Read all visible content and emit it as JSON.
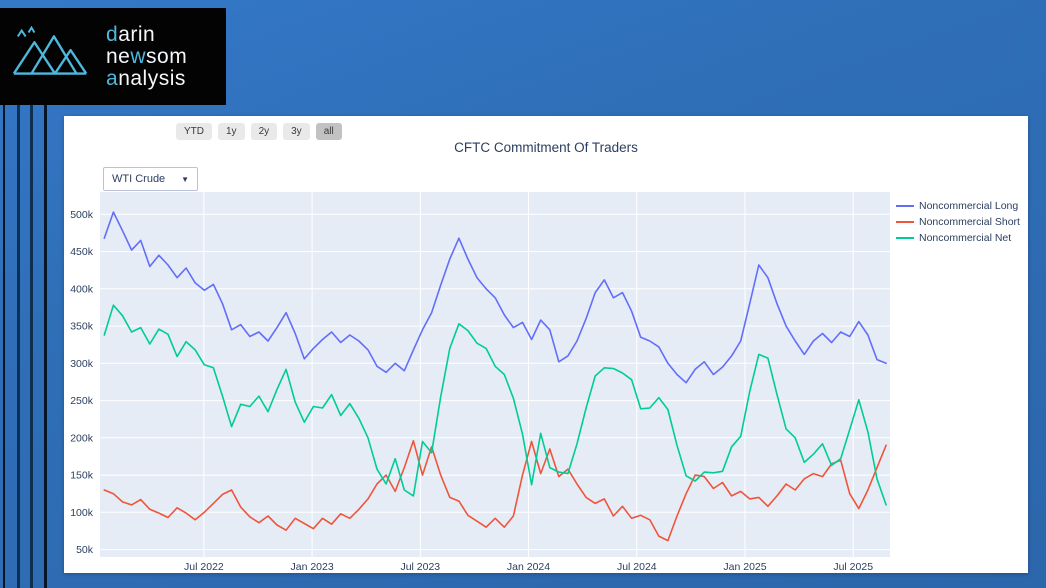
{
  "logo": {
    "line1_hl": "d",
    "line1_rest": "arin",
    "line2_pre": "ne",
    "line2_hl": "w",
    "line2_rest": "som",
    "line3_hl": "a",
    "line3_rest": "nalysis",
    "accent": "#4db9de",
    "icon": "mountain-peaks-icon"
  },
  "toolbar": {
    "range_buttons": [
      "YTD",
      "1y",
      "2y",
      "3y",
      "all"
    ],
    "active_range": "all"
  },
  "instrument": {
    "selected": "WTI Crude",
    "caret": "▼"
  },
  "chart_data": {
    "type": "line",
    "title": "CFTC Commitment Of Traders",
    "plot_bg": "#e5ecf6",
    "grid": true,
    "legend_position": "right",
    "values_unit": "thousands of contracts",
    "x_start": 2022.04,
    "x_step": 0.042,
    "x_range": [
      2022.02,
      2025.67
    ],
    "y_range": [
      40,
      530
    ],
    "xticks": {
      "values": [
        2022.5,
        2023.0,
        2023.5,
        2024.0,
        2024.5,
        2025.0,
        2025.5
      ],
      "labels": [
        "Jul 2022",
        "Jan 2023",
        "Jul 2023",
        "Jan 2024",
        "Jul 2024",
        "Jan 2025",
        "Jul 2025"
      ]
    },
    "yticks": {
      "values": [
        50,
        100,
        150,
        200,
        250,
        300,
        350,
        400,
        450,
        500
      ],
      "labels": [
        "50k",
        "100k",
        "150k",
        "200k",
        "250k",
        "300k",
        "350k",
        "400k",
        "450k",
        "500k"
      ]
    },
    "series": [
      {
        "name": "Noncommercial Long",
        "color": "#636efa",
        "values": [
          468,
          503,
          478,
          452,
          465,
          430,
          445,
          432,
          415,
          428,
          408,
          398,
          406,
          380,
          345,
          352,
          336,
          342,
          330,
          348,
          368,
          340,
          306,
          320,
          332,
          342,
          328,
          338,
          330,
          318,
          296,
          288,
          300,
          290,
          318,
          345,
          368,
          405,
          440,
          468,
          440,
          415,
          400,
          388,
          365,
          348,
          355,
          332,
          358,
          345,
          302,
          310,
          330,
          360,
          395,
          412,
          388,
          395,
          370,
          335,
          330,
          322,
          300,
          285,
          274,
          292,
          302,
          285,
          295,
          310,
          330,
          380,
          432,
          415,
          380,
          350,
          330,
          312,
          330,
          340,
          328,
          342,
          336,
          356,
          338,
          305,
          300
        ]
      },
      {
        "name": "Noncommercial Short",
        "color": "#ef553b",
        "values": [
          130,
          125,
          114,
          110,
          117,
          104,
          99,
          93,
          106,
          99,
          90,
          100,
          112,
          124,
          130,
          107,
          94,
          86,
          95,
          83,
          76,
          92,
          85,
          78,
          92,
          84,
          98,
          92,
          104,
          118,
          138,
          150,
          128,
          160,
          196,
          150,
          188,
          150,
          120,
          115,
          96,
          88,
          80,
          92,
          80,
          95,
          150,
          195,
          152,
          185,
          148,
          158,
          138,
          120,
          112,
          118,
          95,
          108,
          92,
          96,
          90,
          68,
          62,
          95,
          125,
          150,
          148,
          132,
          140,
          122,
          128,
          118,
          120,
          108,
          122,
          138,
          130,
          145,
          152,
          148,
          165,
          170,
          125,
          105,
          130,
          160,
          190
        ]
      },
      {
        "name": "Noncommercial Net",
        "color": "#00cc96",
        "values": [
          338,
          378,
          364,
          342,
          348,
          326,
          346,
          339,
          309,
          329,
          318,
          298,
          294,
          256,
          215,
          245,
          242,
          256,
          235,
          265,
          292,
          248,
          221,
          242,
          240,
          258,
          230,
          246,
          226,
          200,
          158,
          138,
          172,
          130,
          122,
          195,
          180,
          255,
          320,
          353,
          344,
          327,
          320,
          296,
          285,
          253,
          205,
          137,
          206,
          160,
          154,
          152,
          192,
          240,
          283,
          294,
          293,
          287,
          278,
          239,
          240,
          254,
          238,
          190,
          149,
          142,
          154,
          153,
          155,
          188,
          202,
          262,
          312,
          307,
          258,
          212,
          200,
          167,
          178,
          192,
          163,
          172,
          211,
          251,
          208,
          145,
          110
        ]
      }
    ],
    "axis_text_color": "#2a3f5f"
  }
}
